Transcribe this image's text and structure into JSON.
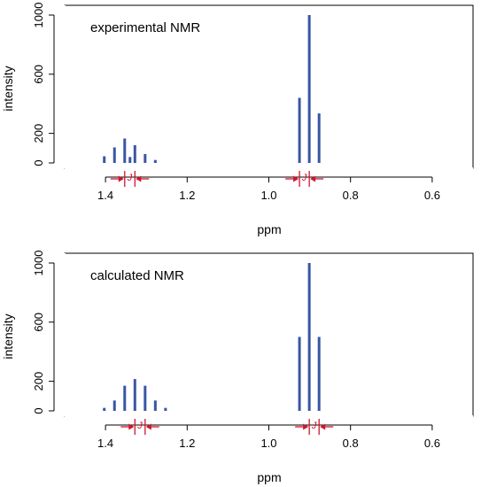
{
  "chart_data": [
    {
      "type": "bar",
      "title": "experimental NMR",
      "xlabel": "ppm",
      "ylabel": "intensity",
      "x_reversed": true,
      "xlim": [
        1.5,
        0.5
      ],
      "ylim": [
        0,
        1000
      ],
      "xticks": [
        "1.4",
        "1.2",
        "1.0",
        "0.8",
        "0.6"
      ],
      "yticks": [
        "0",
        "200",
        "600",
        "1000"
      ],
      "grid": false,
      "peak_color": "#3a56a3",
      "annotation_color": "#d0142c",
      "peaks": [
        {
          "x": 1.403,
          "y": 45
        },
        {
          "x": 1.378,
          "y": 105
        },
        {
          "x": 1.353,
          "y": 165
        },
        {
          "x": 1.34,
          "y": 40
        },
        {
          "x": 1.328,
          "y": 120
        },
        {
          "x": 1.303,
          "y": 60
        },
        {
          "x": 1.278,
          "y": 20
        },
        {
          "x": 0.925,
          "y": 440
        },
        {
          "x": 0.901,
          "y": 1000
        },
        {
          "x": 0.877,
          "y": 335
        }
      ],
      "coupling_markers": [
        {
          "label": "J",
          "from": 1.353,
          "to": 1.328
        },
        {
          "label": "J",
          "from": 0.925,
          "to": 0.901
        }
      ]
    },
    {
      "type": "bar",
      "title": "calculated NMR",
      "xlabel": "ppm",
      "ylabel": "intensity",
      "x_reversed": true,
      "xlim": [
        1.5,
        0.5
      ],
      "ylim": [
        0,
        1000
      ],
      "xticks": [
        "1.4",
        "1.2",
        "1.0",
        "0.8",
        "0.6"
      ],
      "yticks": [
        "0",
        "200",
        "600",
        "1000"
      ],
      "grid": false,
      "peak_color": "#3a56a3",
      "annotation_color": "#d0142c",
      "peaks": [
        {
          "x": 1.403,
          "y": 20
        },
        {
          "x": 1.378,
          "y": 70
        },
        {
          "x": 1.353,
          "y": 170
        },
        {
          "x": 1.328,
          "y": 215
        },
        {
          "x": 1.303,
          "y": 170
        },
        {
          "x": 1.278,
          "y": 70
        },
        {
          "x": 1.253,
          "y": 20
        },
        {
          "x": 0.925,
          "y": 500
        },
        {
          "x": 0.901,
          "y": 1000
        },
        {
          "x": 0.877,
          "y": 500
        }
      ],
      "coupling_markers": [
        {
          "label": "J",
          "from": 1.328,
          "to": 1.303
        },
        {
          "label": "J",
          "from": 0.901,
          "to": 0.877
        }
      ]
    }
  ]
}
